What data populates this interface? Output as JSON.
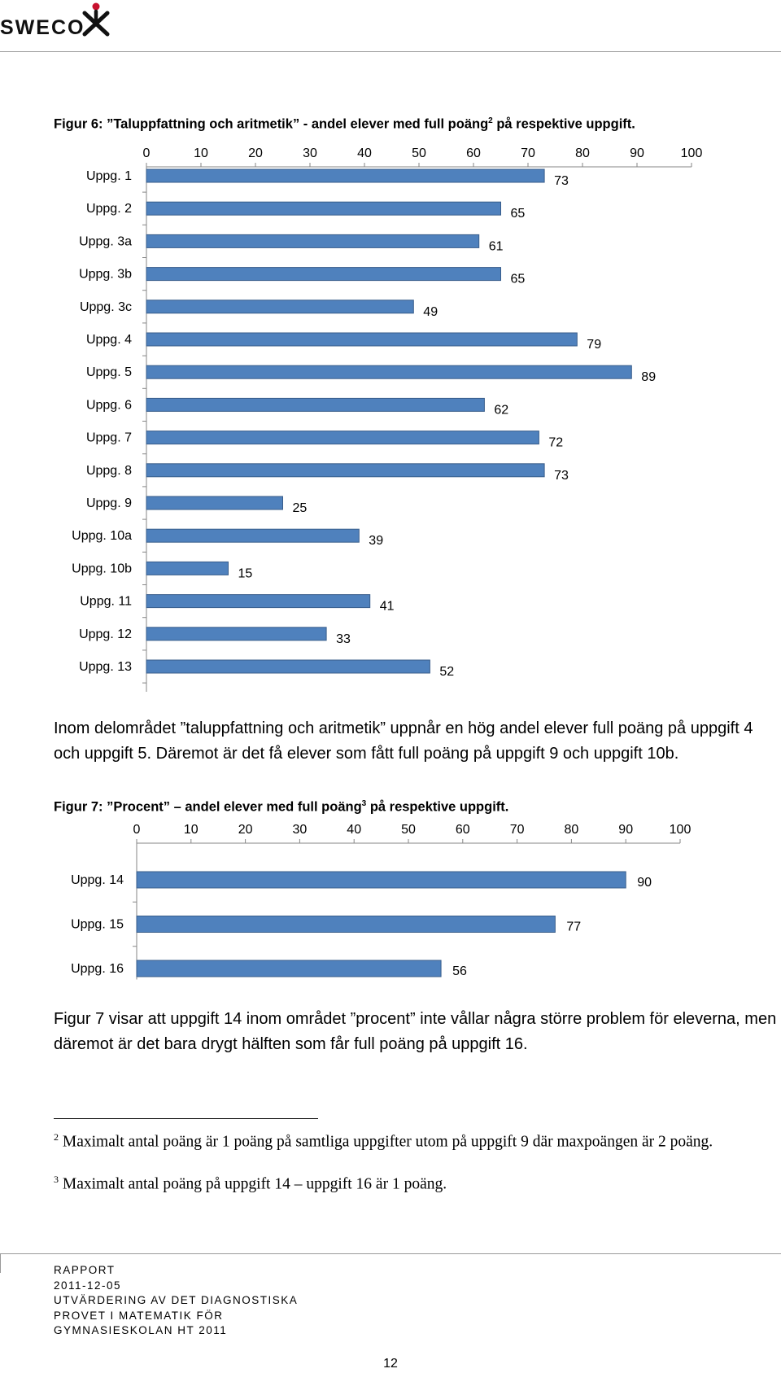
{
  "header": {
    "logo_text": "SWECO"
  },
  "figure6": {
    "caption_pre": "Figur 6: ”Taluppfattning och aritmetik” - andel elever med full poäng",
    "caption_sup": "2",
    "caption_post": " på respektive uppgift."
  },
  "paragraph1": "Inom delområdet ”taluppfattning och aritmetik” uppnår en hög andel elever full poäng på uppgift 4 och uppgift 5. Däremot är det få elever som fått full poäng på uppgift 9 och uppgift 10b.",
  "figure7": {
    "caption_pre": "Figur 7: ”Procent” – andel elever med full poäng",
    "caption_sup": "3",
    "caption_post": " på respektive uppgift."
  },
  "paragraph2": "Figur 7 visar att uppgift 14 inom området ”procent” inte vållar några större problem för eleverna, men däremot är det bara drygt hälften som får full poäng på uppgift 16.",
  "footnotes": [
    {
      "num": "2",
      "text": "Maximalt antal poäng är 1 poäng på samtliga uppgifter utom på uppgift 9 där maxpoängen är 2 poäng."
    },
    {
      "num": "3",
      "text": "Maximalt antal poäng på uppgift 14 – uppgift 16 är 1 poäng."
    }
  ],
  "footer": {
    "lines": [
      "RAPPORT",
      "2011-12-05",
      "UTVÄRDERING AV DET DIAGNOSTISKA",
      "PROVET I MATEMATIK FÖR",
      "GYMNASIESKOLAN HT 2011"
    ],
    "page_number": "12"
  },
  "colors": {
    "bar": "#4F81BD",
    "bar_outline": "#385D8A",
    "axis": "#868686"
  },
  "chart_data": [
    {
      "type": "bar",
      "orientation": "horizontal",
      "title": "",
      "xlim": [
        0,
        100
      ],
      "ticks": [
        0,
        10,
        20,
        30,
        40,
        50,
        60,
        70,
        80,
        90,
        100
      ],
      "axis_position": "top",
      "grid": false,
      "categories": [
        "Uppg. 1",
        "Uppg. 2",
        "Uppg. 3a",
        "Uppg. 3b",
        "Uppg. 3c",
        "Uppg. 4",
        "Uppg. 5",
        "Uppg. 6",
        "Uppg. 7",
        "Uppg. 8",
        "Uppg. 9",
        "Uppg. 10a",
        "Uppg. 10b",
        "Uppg. 11",
        "Uppg. 12",
        "Uppg. 13"
      ],
      "values": [
        73,
        65,
        61,
        65,
        49,
        79,
        89,
        62,
        72,
        73,
        25,
        39,
        15,
        41,
        33,
        52
      ]
    },
    {
      "type": "bar",
      "orientation": "horizontal",
      "title": "",
      "xlim": [
        0,
        100
      ],
      "ticks": [
        0,
        10,
        20,
        30,
        40,
        50,
        60,
        70,
        80,
        90,
        100
      ],
      "axis_position": "top",
      "grid": false,
      "categories": [
        "Uppg. 14",
        "Uppg. 15",
        "Uppg. 16"
      ],
      "values": [
        90,
        77,
        56
      ]
    }
  ]
}
